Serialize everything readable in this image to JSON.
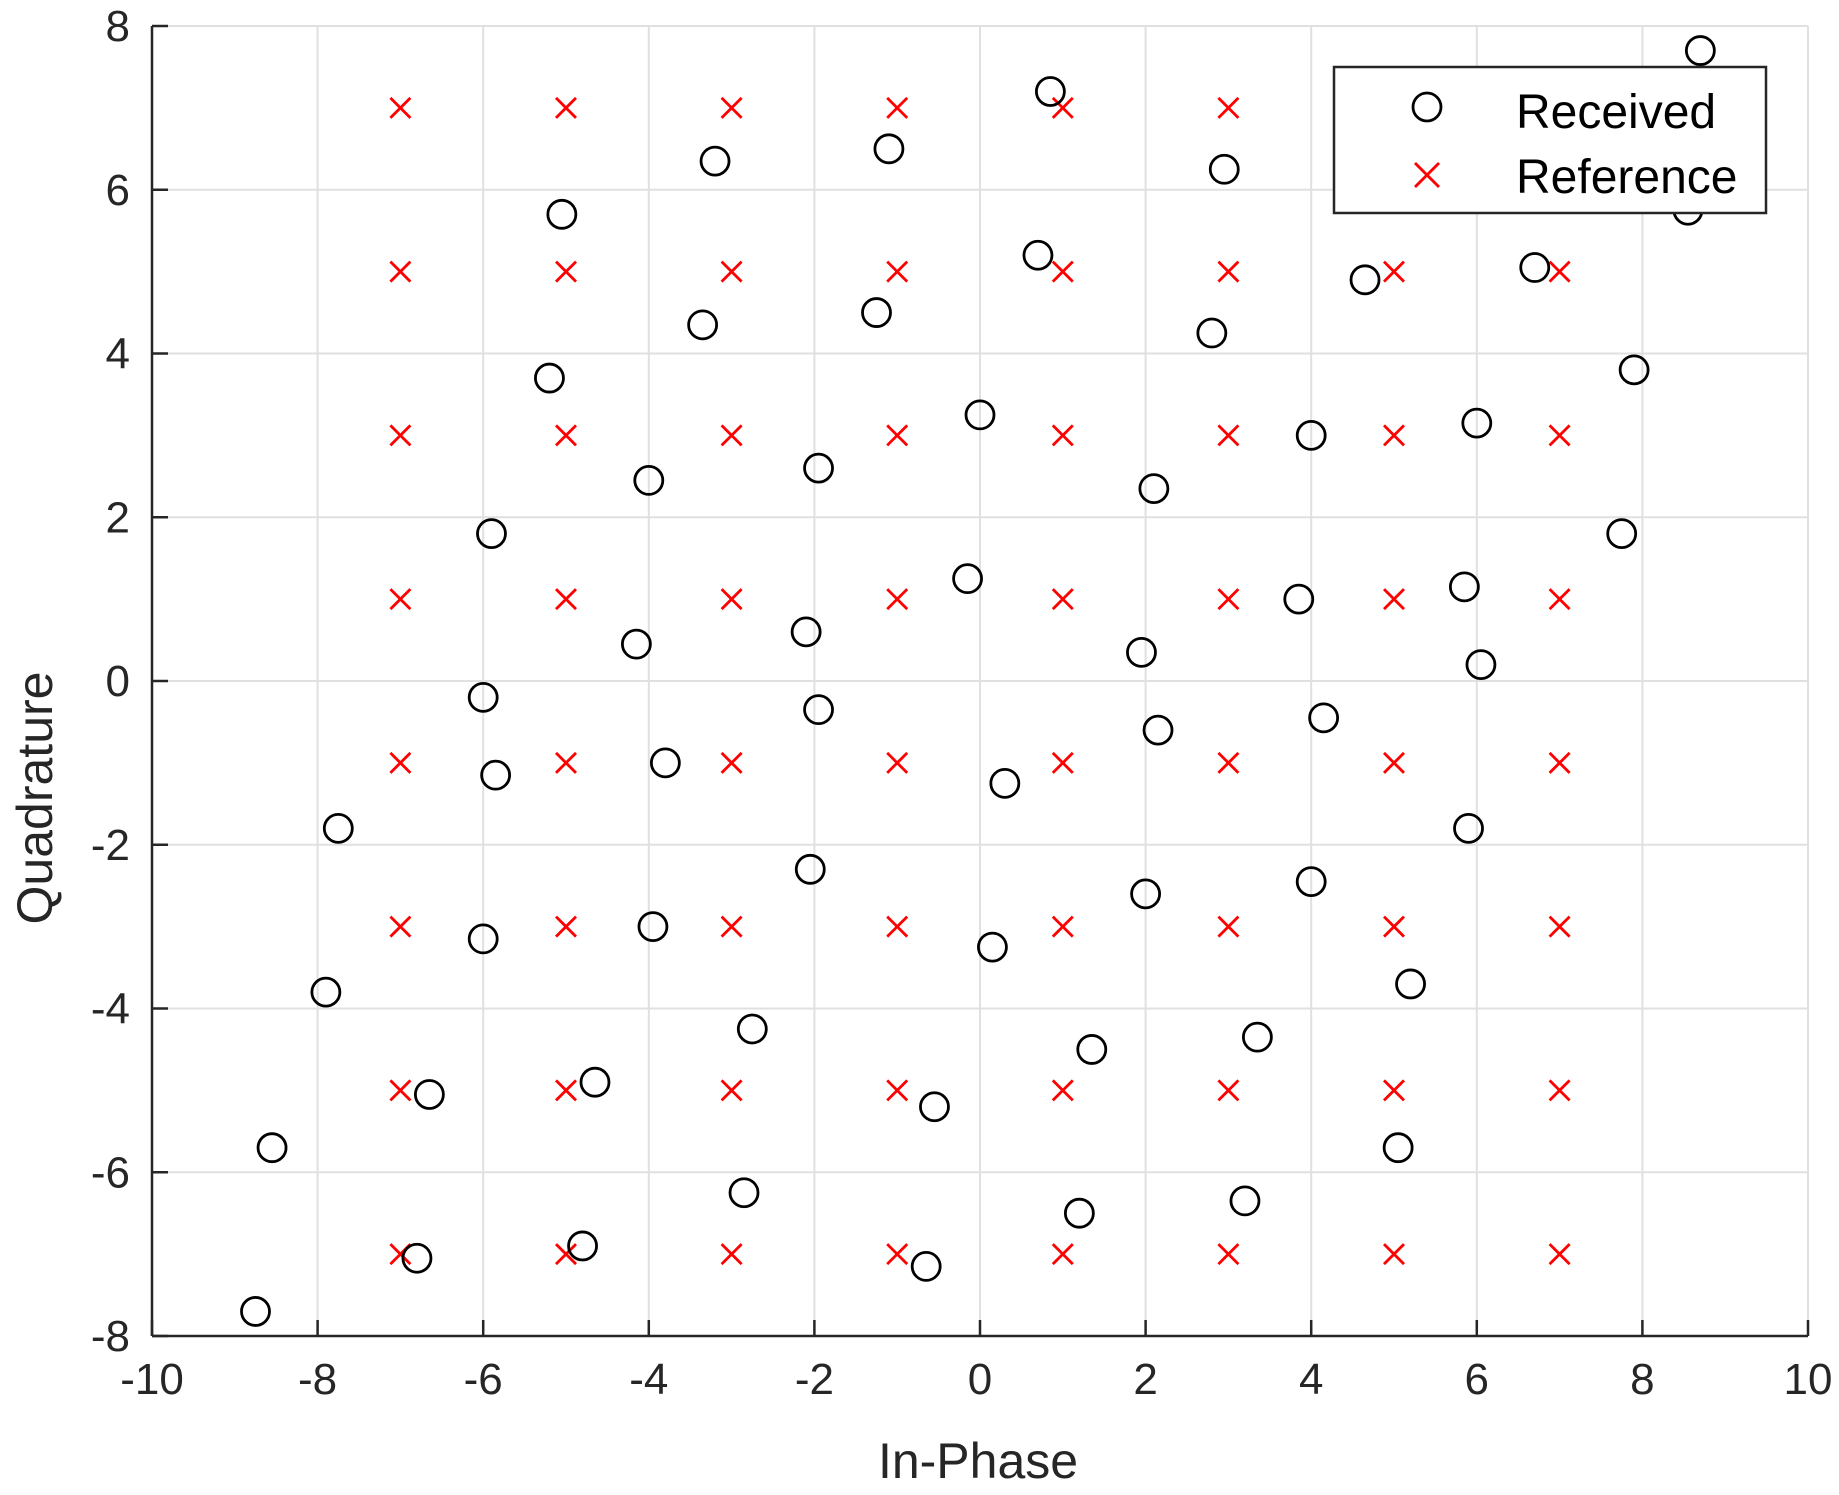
{
  "chart_data": {
    "type": "scatter",
    "xlabel": "In-Phase",
    "ylabel": "Quadrature",
    "xlim": [
      -10,
      10
    ],
    "ylim": [
      -8,
      8
    ],
    "xticks": [
      -10,
      -8,
      -6,
      -4,
      -2,
      0,
      2,
      4,
      6,
      8,
      10
    ],
    "yticks": [
      -8,
      -6,
      -4,
      -2,
      0,
      2,
      4,
      6,
      8
    ],
    "grid": true,
    "legend_position": "top-right",
    "series": [
      {
        "name": "Received",
        "marker": "circle",
        "color": "#000000",
        "points": [
          [
            -8.75,
            -7.7
          ],
          [
            -8.55,
            -5.7
          ],
          [
            -7.9,
            -3.8
          ],
          [
            -7.75,
            -1.8
          ],
          [
            -6.8,
            -7.05
          ],
          [
            -6.65,
            -5.05
          ],
          [
            -6.0,
            -3.15
          ],
          [
            -5.85,
            -1.15
          ],
          [
            -6.0,
            -0.2
          ],
          [
            -5.9,
            1.8
          ],
          [
            -5.2,
            3.7
          ],
          [
            -5.05,
            5.7
          ],
          [
            -4.8,
            -6.9
          ],
          [
            -4.65,
            -4.9
          ],
          [
            -3.95,
            -3.0
          ],
          [
            -3.8,
            -1.0
          ],
          [
            -4.15,
            0.45
          ],
          [
            -4.0,
            2.45
          ],
          [
            -3.35,
            4.35
          ],
          [
            -3.2,
            6.35
          ],
          [
            -2.85,
            -6.25
          ],
          [
            -2.75,
            -4.25
          ],
          [
            -2.05,
            -2.3
          ],
          [
            -1.95,
            -0.35
          ],
          [
            -2.1,
            0.6
          ],
          [
            -1.95,
            2.6
          ],
          [
            -1.25,
            4.5
          ],
          [
            -1.1,
            6.5
          ],
          [
            -0.65,
            -7.15
          ],
          [
            -0.55,
            -5.2
          ],
          [
            0.15,
            -3.25
          ],
          [
            0.3,
            -1.25
          ],
          [
            -0.15,
            1.25
          ],
          [
            0.0,
            3.25
          ],
          [
            0.7,
            5.2
          ],
          [
            0.85,
            7.2
          ],
          [
            1.2,
            -6.5
          ],
          [
            1.35,
            -4.5
          ],
          [
            2.0,
            -2.6
          ],
          [
            2.15,
            -0.6
          ],
          [
            1.95,
            0.35
          ],
          [
            2.1,
            2.35
          ],
          [
            2.8,
            4.25
          ],
          [
            2.95,
            6.25
          ],
          [
            3.2,
            -6.35
          ],
          [
            3.35,
            -4.35
          ],
          [
            4.0,
            -2.45
          ],
          [
            4.15,
            -0.45
          ],
          [
            3.85,
            1.0
          ],
          [
            4.0,
            3.0
          ],
          [
            4.65,
            4.9
          ],
          [
            5.05,
            -5.7
          ],
          [
            5.2,
            -3.7
          ],
          [
            5.9,
            -1.8
          ],
          [
            6.05,
            0.2
          ],
          [
            5.85,
            1.15
          ],
          [
            6.0,
            3.15
          ],
          [
            6.7,
            5.05
          ],
          [
            7.75,
            1.8
          ],
          [
            7.9,
            3.8
          ],
          [
            8.55,
            5.75
          ],
          [
            8.7,
            7.7
          ]
        ]
      },
      {
        "name": "Reference",
        "marker": "x",
        "color": "#ff0000",
        "grid_levels": [
          -7,
          -5,
          -3,
          -1,
          1,
          3,
          5,
          7
        ]
      }
    ]
  }
}
